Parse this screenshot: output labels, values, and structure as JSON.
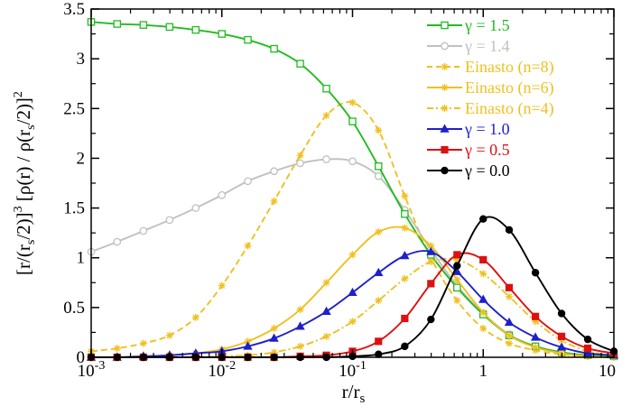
{
  "chart_data": {
    "type": "line",
    "title": "",
    "xlabel": "r/r_s",
    "ylabel": "[r/(r_s/2)]^3 [ρ(r) / ρ(r_s/2)]^2",
    "xscale": "log",
    "xlim": [
      0.001,
      10
    ],
    "ylim": [
      0,
      3.5
    ],
    "grid": false,
    "legend_position": "top-right",
    "x_ticks": [
      {
        "value": 0.001,
        "base": "10",
        "exp": "-3"
      },
      {
        "value": 0.01,
        "base": "10",
        "exp": "-2"
      },
      {
        "value": 0.1,
        "base": "10",
        "exp": "-1"
      },
      {
        "value": 1,
        "base": "1",
        "exp": ""
      },
      {
        "value": 10,
        "base": "10",
        "exp": ""
      }
    ],
    "y_ticks": [
      {
        "value": 0,
        "label": "0"
      },
      {
        "value": 0.5,
        "label": "0.5"
      },
      {
        "value": 1,
        "label": "1"
      },
      {
        "value": 1.5,
        "label": "1.5"
      },
      {
        "value": 2,
        "label": "2"
      },
      {
        "value": 2.5,
        "label": "2.5"
      },
      {
        "value": 3,
        "label": "3"
      },
      {
        "value": 3.5,
        "label": "3.5"
      }
    ],
    "series": [
      {
        "name": "γ = 1.5",
        "color": "#22bb22",
        "dash": "solid",
        "marker": "open-square",
        "x": [
          0.001,
          0.00158,
          0.00251,
          0.00398,
          0.00631,
          0.01,
          0.0158,
          0.0251,
          0.0398,
          0.0631,
          0.1,
          0.158,
          0.251,
          0.398,
          0.631,
          1.0,
          1.58,
          2.51,
          3.98,
          6.31,
          10.0
        ],
        "y": [
          3.37,
          3.35,
          3.34,
          3.32,
          3.29,
          3.25,
          3.19,
          3.1,
          2.95,
          2.7,
          2.37,
          1.92,
          1.44,
          1.03,
          0.7,
          0.43,
          0.22,
          0.11,
          0.05,
          0.02,
          0.01
        ]
      },
      {
        "name": "γ = 1.4",
        "color": "#c0c0c0",
        "dash": "solid",
        "marker": "open-circle",
        "x": [
          0.001,
          0.00158,
          0.00251,
          0.00398,
          0.00631,
          0.01,
          0.0158,
          0.0251,
          0.0398,
          0.0631,
          0.1,
          0.158,
          0.251,
          0.398,
          0.631,
          1.0,
          1.58,
          2.51,
          3.98,
          6.31,
          10.0
        ],
        "y": [
          1.06,
          1.16,
          1.27,
          1.38,
          1.5,
          1.63,
          1.77,
          1.87,
          1.95,
          1.99,
          1.97,
          1.82,
          1.48,
          1.08,
          0.72,
          0.44,
          0.23,
          0.11,
          0.05,
          0.02,
          0.01
        ]
      },
      {
        "name": "Einasto (n=8)",
        "color": "#f0c020",
        "dash": "dashed",
        "marker": "star",
        "x": [
          0.001,
          0.00158,
          0.00251,
          0.00398,
          0.00631,
          0.01,
          0.0158,
          0.0251,
          0.0398,
          0.0631,
          0.1,
          0.158,
          0.251,
          0.398,
          0.631,
          1.0,
          1.58,
          2.51,
          3.98,
          6.31,
          10.0
        ],
        "y": [
          0.06,
          0.09,
          0.14,
          0.22,
          0.4,
          0.72,
          1.12,
          1.57,
          2.03,
          2.43,
          2.56,
          2.28,
          1.62,
          1.0,
          0.57,
          0.29,
          0.14,
          0.07,
          0.03,
          0.01,
          0.0
        ]
      },
      {
        "name": "Einasto (n=6)",
        "color": "#f0c020",
        "dash": "solid",
        "marker": "star",
        "x": [
          0.001,
          0.00158,
          0.00251,
          0.00398,
          0.00631,
          0.01,
          0.0158,
          0.0251,
          0.0398,
          0.0631,
          0.1,
          0.158,
          0.251,
          0.398,
          0.631,
          1.0,
          1.58,
          2.51,
          3.98,
          6.31,
          10.0
        ],
        "y": [
          0.0,
          0.0,
          0.01,
          0.02,
          0.04,
          0.08,
          0.16,
          0.29,
          0.48,
          0.75,
          1.03,
          1.26,
          1.3,
          1.12,
          0.78,
          0.45,
          0.22,
          0.1,
          0.04,
          0.01,
          0.0
        ]
      },
      {
        "name": "Einasto (n=4)",
        "color": "#f0c020",
        "dash": "dashdot",
        "marker": "star",
        "x": [
          0.001,
          0.00158,
          0.00251,
          0.00398,
          0.00631,
          0.01,
          0.0158,
          0.0251,
          0.0398,
          0.0631,
          0.1,
          0.158,
          0.251,
          0.398,
          0.631,
          1.0,
          1.58,
          2.51,
          3.98,
          6.31,
          10.0
        ],
        "y": [
          0.0,
          0.0,
          0.0,
          0.0,
          0.0,
          0.01,
          0.02,
          0.05,
          0.11,
          0.21,
          0.36,
          0.57,
          0.79,
          0.96,
          0.98,
          0.84,
          0.61,
          0.36,
          0.17,
          0.06,
          0.02
        ]
      },
      {
        "name": "γ = 1.0",
        "color": "#1f1fcc",
        "dash": "solid",
        "marker": "filled-triangle",
        "x": [
          0.001,
          0.00158,
          0.00251,
          0.00398,
          0.00631,
          0.01,
          0.0158,
          0.0251,
          0.0398,
          0.0631,
          0.1,
          0.158,
          0.251,
          0.398,
          0.631,
          1.0,
          1.58,
          2.51,
          3.98,
          6.31,
          10.0
        ],
        "y": [
          0.0,
          0.0,
          0.01,
          0.02,
          0.04,
          0.06,
          0.11,
          0.19,
          0.31,
          0.46,
          0.65,
          0.85,
          1.02,
          1.06,
          0.86,
          0.58,
          0.35,
          0.2,
          0.1,
          0.04,
          0.02
        ]
      },
      {
        "name": "γ = 0.5",
        "color": "#dd1111",
        "dash": "solid",
        "marker": "filled-square",
        "x": [
          0.001,
          0.00158,
          0.00251,
          0.00398,
          0.00631,
          0.01,
          0.0158,
          0.0251,
          0.0398,
          0.0631,
          0.1,
          0.158,
          0.251,
          0.398,
          0.631,
          1.0,
          1.58,
          2.51,
          3.98,
          6.31,
          10.0
        ],
        "y": [
          0.0,
          0.0,
          0.0,
          0.0,
          0.0,
          0.0,
          0.0,
          0.0,
          0.01,
          0.02,
          0.06,
          0.16,
          0.39,
          0.74,
          1.03,
          0.98,
          0.7,
          0.41,
          0.21,
          0.09,
          0.04
        ]
      },
      {
        "name": "γ = 0.0",
        "color": "#000000",
        "dash": "solid",
        "marker": "filled-circle",
        "x": [
          0.001,
          0.00158,
          0.00251,
          0.00398,
          0.00631,
          0.01,
          0.0158,
          0.0251,
          0.0398,
          0.0631,
          0.1,
          0.158,
          0.251,
          0.398,
          0.631,
          1.0,
          1.58,
          2.51,
          3.98,
          6.31,
          10.0
        ],
        "y": [
          0.0,
          0.0,
          0.0,
          0.0,
          0.0,
          0.0,
          0.0,
          0.0,
          0.0,
          0.0,
          0.01,
          0.03,
          0.11,
          0.38,
          0.92,
          1.39,
          1.28,
          0.85,
          0.44,
          0.18,
          0.06
        ]
      }
    ]
  }
}
